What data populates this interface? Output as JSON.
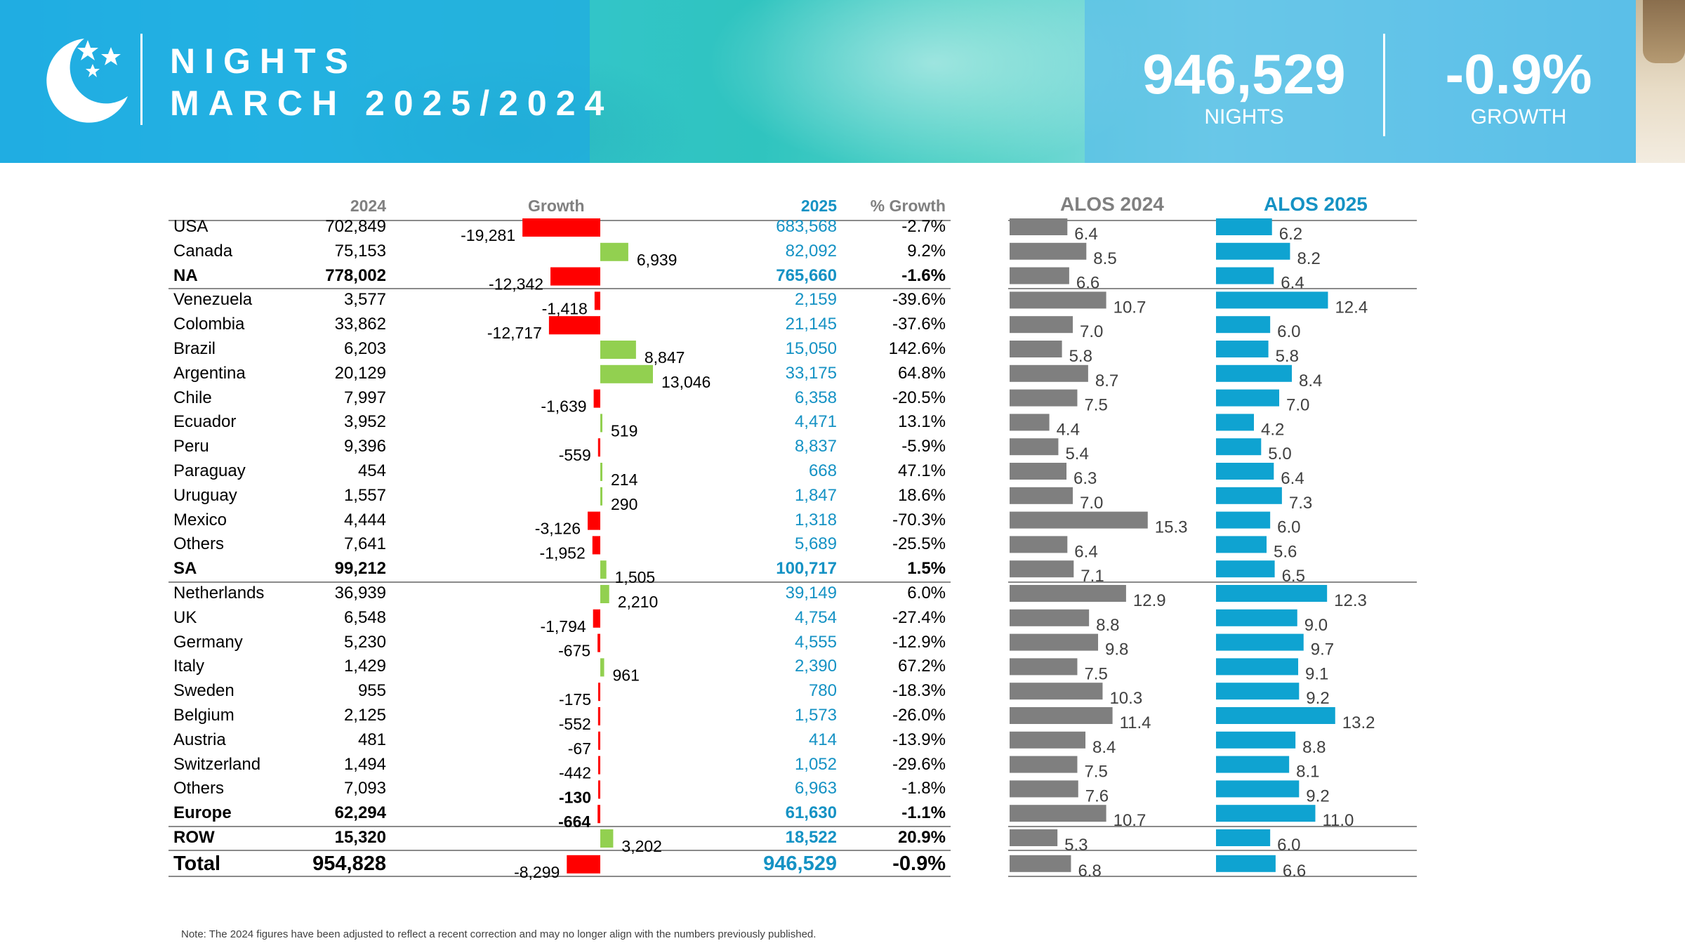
{
  "header": {
    "title_line1": "NIGHTS",
    "title_line2": "MARCH 2025/2024",
    "stat_nights_value": "946,529",
    "stat_nights_label": "NIGHTS",
    "stat_growth_value": "-0.9%",
    "stat_growth_label": "GROWTH"
  },
  "table": {
    "col_2024": "2024",
    "col_growth": "Growth",
    "col_2025": "2025",
    "col_pct": "% Growth",
    "col_alos2024": "ALOS 2024",
    "col_alos2025": "ALOS 2025"
  },
  "colors": {
    "negative": "#ff0000",
    "positive": "#92d050",
    "alos2024": "#7f7f7f",
    "alos2025": "#0fa3d1",
    "blue_text": "#1592c4"
  },
  "chart_data": {
    "type": "table",
    "rows": [
      {
        "country": "USA",
        "y2024": "702,849",
        "growth": -19281,
        "growth_label": "-19,281",
        "y2025": "683,568",
        "pct": "-2.7%",
        "alos2024": 6.4,
        "alos2024_label": "6.4",
        "alos2025": 6.2,
        "alos2025_label": "6.2",
        "bold": false,
        "bold_growth": false,
        "sep": false
      },
      {
        "country": "Canada",
        "y2024": "75,153",
        "growth": 6939,
        "growth_label": "6,939",
        "y2025": "82,092",
        "pct": "9.2%",
        "alos2024": 8.5,
        "alos2024_label": "8.5",
        "alos2025": 8.2,
        "alos2025_label": "8.2",
        "bold": false,
        "bold_growth": false,
        "sep": false
      },
      {
        "country": "NA",
        "y2024": "778,002",
        "growth": -12342,
        "growth_label": "-12,342",
        "y2025": "765,660",
        "pct": "-1.6%",
        "alos2024": 6.6,
        "alos2024_label": "6.6",
        "alos2025": 6.4,
        "alos2025_label": "6.4",
        "bold": true,
        "bold_growth": false,
        "sep": true
      },
      {
        "country": "Venezuela",
        "y2024": "3,577",
        "growth": -1418,
        "growth_label": "-1,418",
        "y2025": "2,159",
        "pct": "-39.6%",
        "alos2024": 10.7,
        "alos2024_label": "10.7",
        "alos2025": 12.4,
        "alos2025_label": "12.4",
        "bold": false,
        "bold_growth": false,
        "sep": false
      },
      {
        "country": "Colombia",
        "y2024": "33,862",
        "growth": -12717,
        "growth_label": "-12,717",
        "y2025": "21,145",
        "pct": "-37.6%",
        "alos2024": 7.0,
        "alos2024_label": "7.0",
        "alos2025": 6.0,
        "alos2025_label": "6.0",
        "bold": false,
        "bold_growth": false,
        "sep": false
      },
      {
        "country": "Brazil",
        "y2024": "6,203",
        "growth": 8847,
        "growth_label": "8,847",
        "y2025": "15,050",
        "pct": "142.6%",
        "alos2024": 5.8,
        "alos2024_label": "5.8",
        "alos2025": 5.8,
        "alos2025_label": "5.8",
        "bold": false,
        "bold_growth": false,
        "sep": false
      },
      {
        "country": "Argentina",
        "y2024": "20,129",
        "growth": 13046,
        "growth_label": "13,046",
        "y2025": "33,175",
        "pct": "64.8%",
        "alos2024": 8.7,
        "alos2024_label": "8.7",
        "alos2025": 8.4,
        "alos2025_label": "8.4",
        "bold": false,
        "bold_growth": false,
        "sep": false
      },
      {
        "country": "Chile",
        "y2024": "7,997",
        "growth": -1639,
        "growth_label": "-1,639",
        "y2025": "6,358",
        "pct": "-20.5%",
        "alos2024": 7.5,
        "alos2024_label": "7.5",
        "alos2025": 7.0,
        "alos2025_label": "7.0",
        "bold": false,
        "bold_growth": false,
        "sep": false
      },
      {
        "country": "Ecuador",
        "y2024": "3,952",
        "growth": 519,
        "growth_label": "519",
        "y2025": "4,471",
        "pct": "13.1%",
        "alos2024": 4.4,
        "alos2024_label": "4.4",
        "alos2025": 4.2,
        "alos2025_label": "4.2",
        "bold": false,
        "bold_growth": false,
        "sep": false
      },
      {
        "country": "Peru",
        "y2024": "9,396",
        "growth": -559,
        "growth_label": "-559",
        "y2025": "8,837",
        "pct": "-5.9%",
        "alos2024": 5.4,
        "alos2024_label": "5.4",
        "alos2025": 5.0,
        "alos2025_label": "5.0",
        "bold": false,
        "bold_growth": false,
        "sep": false
      },
      {
        "country": "Paraguay",
        "y2024": "454",
        "growth": 214,
        "growth_label": "214",
        "y2025": "668",
        "pct": "47.1%",
        "alos2024": 6.3,
        "alos2024_label": "6.3",
        "alos2025": 6.4,
        "alos2025_label": "6.4",
        "bold": false,
        "bold_growth": false,
        "sep": false
      },
      {
        "country": "Uruguay",
        "y2024": "1,557",
        "growth": 290,
        "growth_label": "290",
        "y2025": "1,847",
        "pct": "18.6%",
        "alos2024": 7.0,
        "alos2024_label": "7.0",
        "alos2025": 7.3,
        "alos2025_label": "7.3",
        "bold": false,
        "bold_growth": false,
        "sep": false
      },
      {
        "country": "Mexico",
        "y2024": "4,444",
        "growth": -3126,
        "growth_label": "-3,126",
        "y2025": "1,318",
        "pct": "-70.3%",
        "alos2024": 15.3,
        "alos2024_label": "15.3",
        "alos2025": 6.0,
        "alos2025_label": "6.0",
        "bold": false,
        "bold_growth": false,
        "sep": false
      },
      {
        "country": "Others",
        "y2024": "7,641",
        "growth": -1952,
        "growth_label": "-1,952",
        "y2025": "5,689",
        "pct": "-25.5%",
        "alos2024": 6.4,
        "alos2024_label": "6.4",
        "alos2025": 5.6,
        "alos2025_label": "5.6",
        "bold": false,
        "bold_growth": false,
        "sep": false
      },
      {
        "country": "SA",
        "y2024": "99,212",
        "growth": 1505,
        "growth_label": "1,505",
        "y2025": "100,717",
        "pct": "1.5%",
        "alos2024": 7.1,
        "alos2024_label": "7.1",
        "alos2025": 6.5,
        "alos2025_label": "6.5",
        "bold": true,
        "bold_growth": false,
        "sep": true
      },
      {
        "country": "Netherlands",
        "y2024": "36,939",
        "growth": 2210,
        "growth_label": "2,210",
        "y2025": "39,149",
        "pct": "6.0%",
        "alos2024": 12.9,
        "alos2024_label": "12.9",
        "alos2025": 12.3,
        "alos2025_label": "12.3",
        "bold": false,
        "bold_growth": false,
        "sep": false
      },
      {
        "country": "UK",
        "y2024": "6,548",
        "growth": -1794,
        "growth_label": "-1,794",
        "y2025": "4,754",
        "pct": "-27.4%",
        "alos2024": 8.8,
        "alos2024_label": "8.8",
        "alos2025": 9.0,
        "alos2025_label": "9.0",
        "bold": false,
        "bold_growth": false,
        "sep": false
      },
      {
        "country": "Germany",
        "y2024": "5,230",
        "growth": -675,
        "growth_label": "-675",
        "y2025": "4,555",
        "pct": "-12.9%",
        "alos2024": 9.8,
        "alos2024_label": "9.8",
        "alos2025": 9.7,
        "alos2025_label": "9.7",
        "bold": false,
        "bold_growth": false,
        "sep": false
      },
      {
        "country": "Italy",
        "y2024": "1,429",
        "growth": 961,
        "growth_label": "961",
        "y2025": "2,390",
        "pct": "67.2%",
        "alos2024": 7.5,
        "alos2024_label": "7.5",
        "alos2025": 9.1,
        "alos2025_label": "9.1",
        "bold": false,
        "bold_growth": false,
        "sep": false
      },
      {
        "country": "Sweden",
        "y2024": "955",
        "growth": -175,
        "growth_label": "-175",
        "y2025": "780",
        "pct": "-18.3%",
        "alos2024": 10.3,
        "alos2024_label": "10.3",
        "alos2025": 9.2,
        "alos2025_label": "9.2",
        "bold": false,
        "bold_growth": false,
        "sep": false
      },
      {
        "country": "Belgium",
        "y2024": "2,125",
        "growth": -552,
        "growth_label": "-552",
        "y2025": "1,573",
        "pct": "-26.0%",
        "alos2024": 11.4,
        "alos2024_label": "11.4",
        "alos2025": 13.2,
        "alos2025_label": "13.2",
        "bold": false,
        "bold_growth": false,
        "sep": false
      },
      {
        "country": "Austria",
        "y2024": "481",
        "growth": -67,
        "growth_label": "-67",
        "y2025": "414",
        "pct": "-13.9%",
        "alos2024": 8.4,
        "alos2024_label": "8.4",
        "alos2025": 8.8,
        "alos2025_label": "8.8",
        "bold": false,
        "bold_growth": false,
        "sep": false
      },
      {
        "country": "Switzerland",
        "y2024": "1,494",
        "growth": -442,
        "growth_label": "-442",
        "y2025": "1,052",
        "pct": "-29.6%",
        "alos2024": 7.5,
        "alos2024_label": "7.5",
        "alos2025": 8.1,
        "alos2025_label": "8.1",
        "bold": false,
        "bold_growth": false,
        "sep": false
      },
      {
        "country": "Others",
        "y2024": "7,093",
        "growth": -130,
        "growth_label": "-130",
        "y2025": "6,963",
        "pct": "-1.8%",
        "alos2024": 7.6,
        "alos2024_label": "7.6",
        "alos2025": 9.2,
        "alos2025_label": "9.2",
        "bold": false,
        "bold_growth": true,
        "sep": false
      },
      {
        "country": "Europe",
        "y2024": "62,294",
        "growth": -664,
        "growth_label": "-664",
        "y2025": "61,630",
        "pct": "-1.1%",
        "alos2024": 10.7,
        "alos2024_label": "10.7",
        "alos2025": 11.0,
        "alos2025_label": "11.0",
        "bold": true,
        "bold_growth": true,
        "sep": true
      },
      {
        "country": "ROW",
        "y2024": "15,320",
        "growth": 3202,
        "growth_label": "3,202",
        "y2025": "18,522",
        "pct": "20.9%",
        "alos2024": 5.3,
        "alos2024_label": "5.3",
        "alos2025": 6.0,
        "alos2025_label": "6.0",
        "bold": true,
        "bold_growth": false,
        "sep": true
      },
      {
        "country": "Total",
        "y2024": "954,828",
        "growth": -8299,
        "growth_label": "-8,299",
        "y2025": "946,529",
        "pct": "-0.9%",
        "alos2024": 6.8,
        "alos2024_label": "6.8",
        "alos2025": 6.6,
        "alos2025_label": "6.6",
        "bold": true,
        "bold_growth": false,
        "sep": true,
        "total": true
      }
    ]
  },
  "note": "Note: The 2024 figures have been adjusted to reflect a recent correction and may no longer align with the numbers previously published."
}
